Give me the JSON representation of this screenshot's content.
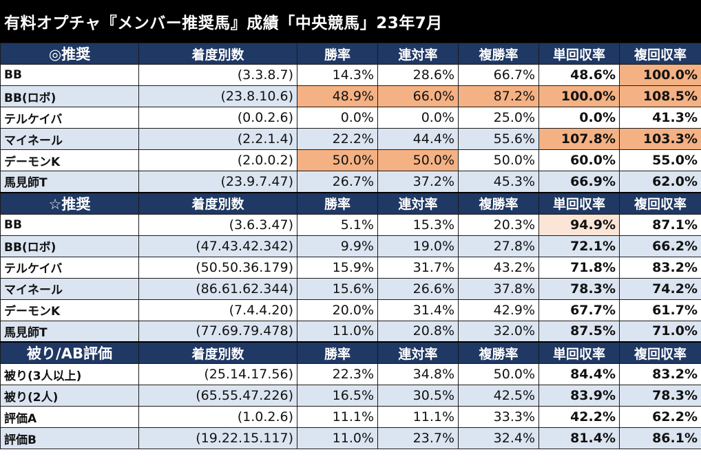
{
  "title": "有料オプチャ『メンバー推奨馬』成績「中央競馬」23年7月",
  "colors": {
    "header": "#1f3864",
    "alt_row": "#dbe5f1",
    "highlight": "#f4b183",
    "highlight_light": "#fbe5d6"
  },
  "columns": [
    "着度別数",
    "勝率",
    "連対率",
    "複勝率",
    "単回収率",
    "複回収率"
  ],
  "sections": [
    {
      "label": "◎推奨",
      "rows": [
        {
          "name": "BB",
          "record": "(3.3.8.7)",
          "win": "14.3%",
          "quin": "28.6%",
          "place": "66.7%",
          "win_ret": "48.6%",
          "place_ret": "100.0%",
          "hl": [
            6
          ]
        },
        {
          "name": "BB(ロボ)",
          "record": "(23.8.10.6)",
          "win": "48.9%",
          "quin": "66.0%",
          "place": "87.2%",
          "win_ret": "100.0%",
          "place_ret": "108.5%",
          "hl": [
            2,
            3,
            4,
            5,
            6
          ]
        },
        {
          "name": "テルケイバ",
          "record": "(0.0.2.6)",
          "win": "0.0%",
          "quin": "0.0%",
          "place": "25.0%",
          "win_ret": "0.0%",
          "place_ret": "41.3%",
          "hl": []
        },
        {
          "name": "マイネール",
          "record": "(2.2.1.4)",
          "win": "22.2%",
          "quin": "44.4%",
          "place": "55.6%",
          "win_ret": "107.8%",
          "place_ret": "103.3%",
          "hl": [
            5,
            6
          ]
        },
        {
          "name": "デーモンK",
          "record": "(2.0.0.2)",
          "win": "50.0%",
          "quin": "50.0%",
          "place": "50.0%",
          "win_ret": "60.0%",
          "place_ret": "55.0%",
          "hl": [
            2,
            3
          ]
        },
        {
          "name": "馬見師T",
          "record": "(23.9.7.47)",
          "win": "26.7%",
          "quin": "37.2%",
          "place": "45.3%",
          "win_ret": "66.9%",
          "place_ret": "62.0%",
          "hl": []
        }
      ]
    },
    {
      "label": "☆推奨",
      "rows": [
        {
          "name": "BB",
          "record": "(3.6.3.47)",
          "win": "5.1%",
          "quin": "15.3%",
          "place": "20.3%",
          "win_ret": "94.9%",
          "place_ret": "87.1%",
          "hl": [],
          "hl2": [
            5
          ]
        },
        {
          "name": "BB(ロボ)",
          "record": "(47.43.42.342)",
          "win": "9.9%",
          "quin": "19.0%",
          "place": "27.8%",
          "win_ret": "72.1%",
          "place_ret": "66.2%",
          "hl": []
        },
        {
          "name": "テルケイバ",
          "record": "(50.50.36.179)",
          "win": "15.9%",
          "quin": "31.7%",
          "place": "43.2%",
          "win_ret": "71.8%",
          "place_ret": "83.2%",
          "hl": []
        },
        {
          "name": "マイネール",
          "record": "(86.61.62.344)",
          "win": "15.6%",
          "quin": "26.6%",
          "place": "37.8%",
          "win_ret": "78.3%",
          "place_ret": "74.2%",
          "hl": []
        },
        {
          "name": "デーモンK",
          "record": "(7.4.4.20)",
          "win": "20.0%",
          "quin": "31.4%",
          "place": "42.9%",
          "win_ret": "67.7%",
          "place_ret": "61.7%",
          "hl": []
        },
        {
          "name": "馬見師T",
          "record": "(77.69.79.478)",
          "win": "11.0%",
          "quin": "20.8%",
          "place": "32.0%",
          "win_ret": "87.5%",
          "place_ret": "71.0%",
          "hl": []
        }
      ]
    },
    {
      "label": "被り/AB評価",
      "rows": [
        {
          "name": "被り(3人以上)",
          "record": "(25.14.17.56)",
          "win": "22.3%",
          "quin": "34.8%",
          "place": "50.0%",
          "win_ret": "84.4%",
          "place_ret": "83.2%",
          "hl": []
        },
        {
          "name": "被り(2人)",
          "record": "(65.55.47.226)",
          "win": "16.5%",
          "quin": "30.5%",
          "place": "42.5%",
          "win_ret": "83.9%",
          "place_ret": "78.3%",
          "hl": []
        },
        {
          "name": "評価A",
          "record": "(1.0.2.6)",
          "win": "11.1%",
          "quin": "11.1%",
          "place": "33.3%",
          "win_ret": "42.2%",
          "place_ret": "62.2%",
          "hl": []
        },
        {
          "name": "評価B",
          "record": "(19.22.15.117)",
          "win": "11.0%",
          "quin": "23.7%",
          "place": "32.4%",
          "win_ret": "81.4%",
          "place_ret": "86.1%",
          "hl": []
        }
      ]
    }
  ]
}
